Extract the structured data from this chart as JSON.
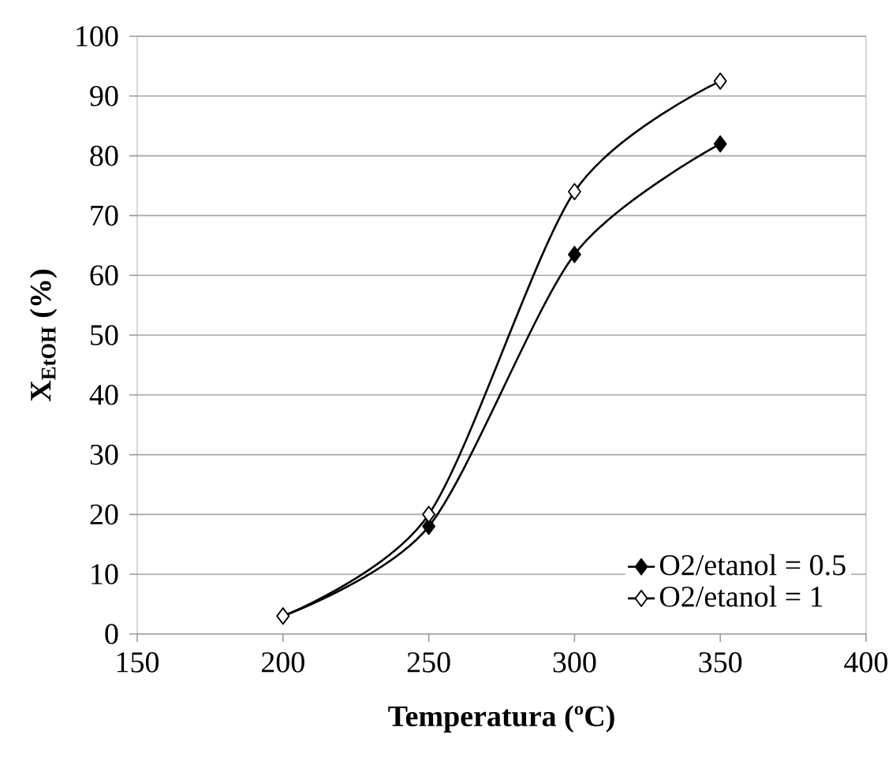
{
  "chart_data": {
    "type": "line",
    "xlabel": "Temperatura  (ºC)",
    "ylabel": "X$_{EtOH}$  (%)",
    "x": [
      200,
      250,
      300,
      350
    ],
    "series": [
      {
        "name": "O2/etanol = 0.5",
        "color": "#000000",
        "values": [
          3,
          18,
          63.5,
          82
        ]
      },
      {
        "name": "O2/etanol = 1",
        "color": "#000000",
        "values": [
          3,
          20,
          74,
          92.5
        ]
      }
    ],
    "xlim": [
      150,
      400
    ],
    "xticks": [
      150,
      200,
      250,
      300,
      350,
      400
    ],
    "ylim": [
      0,
      100
    ],
    "yticks": [
      0,
      10,
      20,
      30,
      40,
      50,
      60,
      70,
      80,
      90,
      100
    ],
    "grid": "y",
    "legend": "bottom right",
    "marker": "diamond",
    "line_style": "solid"
  }
}
